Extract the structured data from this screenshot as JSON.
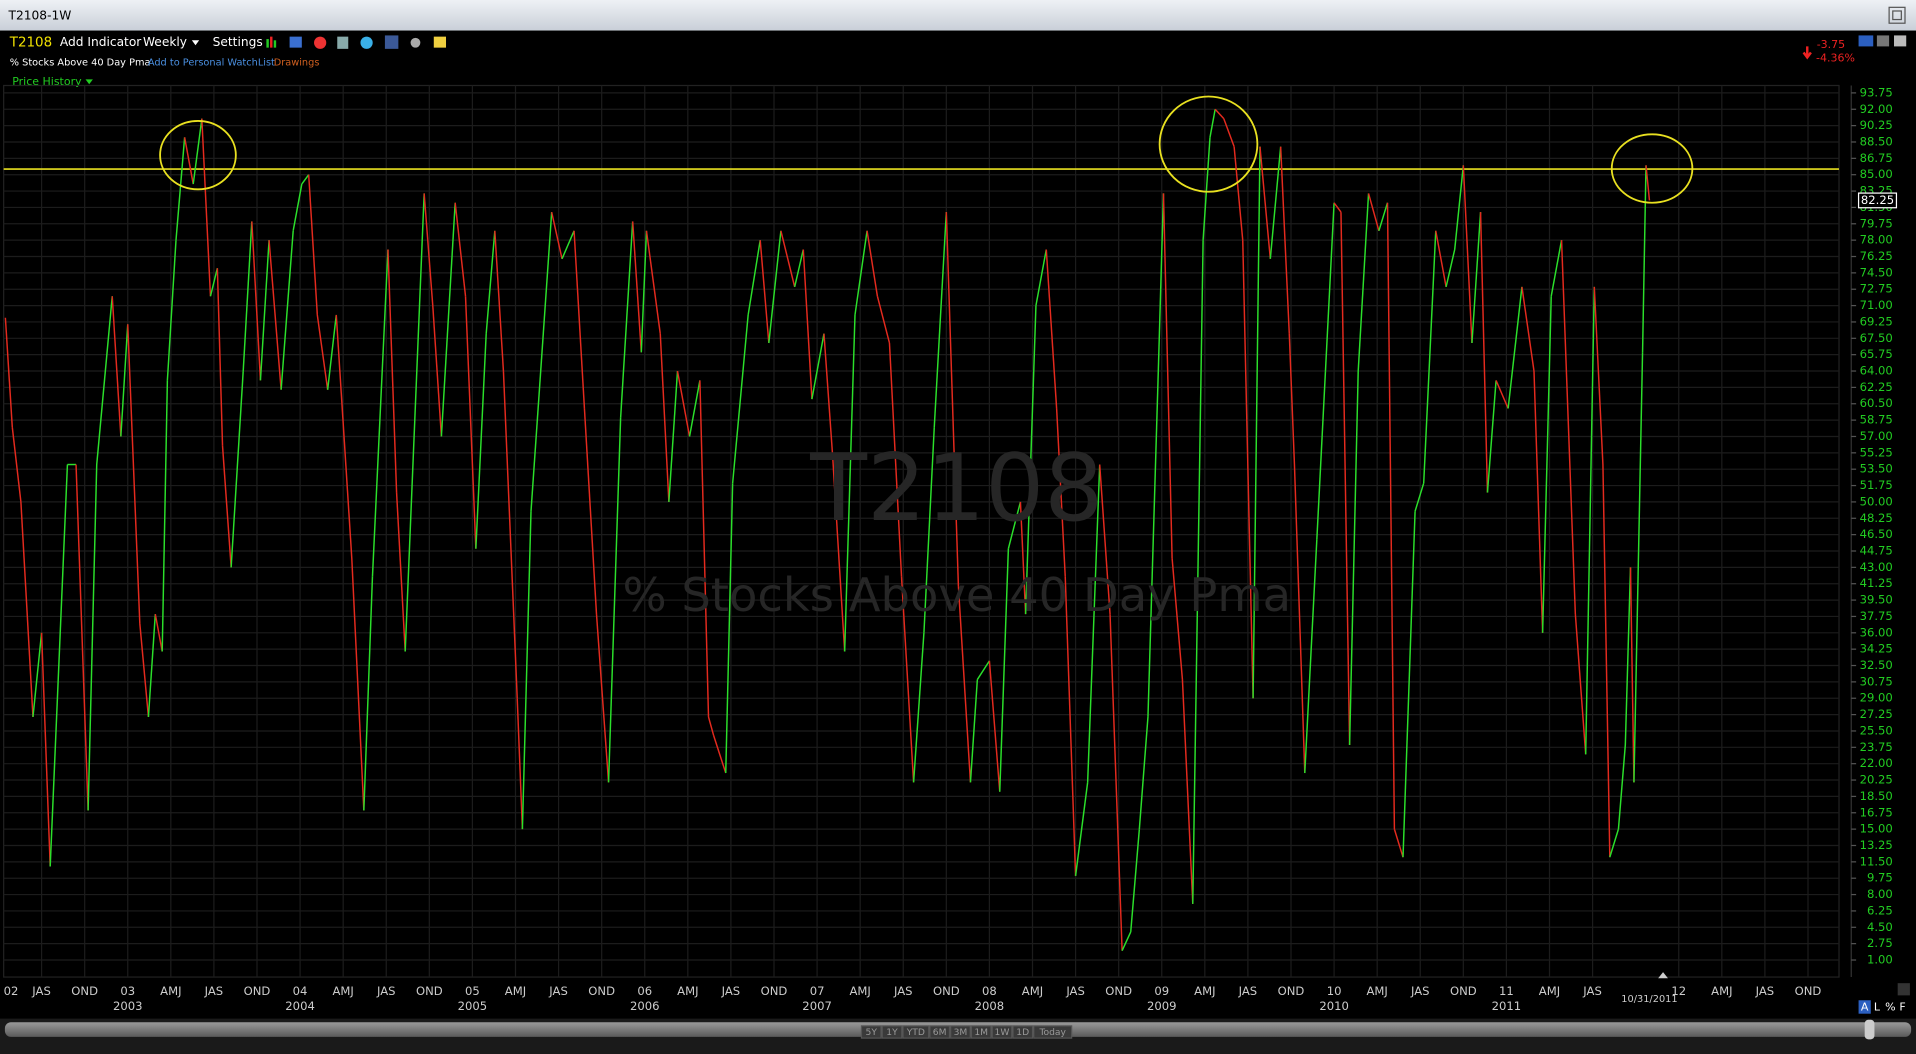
{
  "window": {
    "title": "T2108-1W"
  },
  "toolbar": {
    "symbol": "T2108",
    "add_indicator": "Add Indicator",
    "period": "Weekly",
    "settings": "Settings",
    "description": "% Stocks Above 40 Day Pma",
    "watchlist": "Add to Personal WatchList",
    "drawings": "Drawings",
    "panel": "Price History"
  },
  "quote": {
    "change": "-3.75",
    "change_pct": "-4.36%"
  },
  "range_buttons": [
    "5Y",
    "1Y",
    "YTD",
    "6M",
    "3M",
    "1M",
    "1W",
    "1D",
    "Today"
  ],
  "axis_modes": [
    "A",
    "L",
    "%",
    "F"
  ],
  "chart_data": {
    "type": "line",
    "watermark": {
      "symbol": "T2108",
      "description": "% Stocks Above 40 Day Pma"
    },
    "x": [
      2002.29,
      2002.33,
      2002.38,
      2002.45,
      2002.5,
      2002.55,
      2002.65,
      2002.7,
      2002.77,
      2002.82,
      2002.91,
      2002.96,
      2003.0,
      2003.07,
      2003.12,
      2003.16,
      2003.2,
      2003.23,
      2003.28,
      2003.33,
      2003.38,
      2003.43,
      2003.48,
      2003.52,
      2003.55,
      2003.6,
      2003.67,
      2003.72,
      2003.77,
      2003.82,
      2003.89,
      2003.96,
      2004.01,
      2004.05,
      2004.1,
      2004.16,
      2004.21,
      2004.3,
      2004.37,
      2004.42,
      2004.51,
      2004.56,
      2004.61,
      2004.72,
      2004.77,
      2004.82,
      2004.9,
      2004.96,
      2005.02,
      2005.08,
      2005.13,
      2005.18,
      2005.26,
      2005.29,
      2005.34,
      2005.46,
      2005.52,
      2005.59,
      2005.65,
      2005.72,
      2005.79,
      2005.86,
      2005.93,
      2005.98,
      2006.01,
      2006.09,
      2006.14,
      2006.19,
      2006.26,
      2006.32,
      2006.37,
      2006.4,
      2006.47,
      2006.51,
      2006.6,
      2006.67,
      2006.72,
      2006.79,
      2006.87,
      2006.92,
      2006.97,
      2007.04,
      2007.09,
      2007.16,
      2007.22,
      2007.29,
      2007.35,
      2007.42,
      2007.49,
      2007.56,
      2007.62,
      2007.68,
      2007.75,
      2007.82,
      2007.89,
      2007.93,
      2008.0,
      2008.06,
      2008.11,
      2008.18,
      2008.21,
      2008.27,
      2008.33,
      2008.39,
      2008.44,
      2008.5,
      2008.57,
      2008.64,
      2008.7,
      2008.77,
      2008.82,
      2008.87,
      2008.92,
      2008.98,
      2009.01,
      2009.06,
      2009.12,
      2009.18,
      2009.24,
      2009.28,
      2009.31,
      2009.36,
      2009.42,
      2009.47,
      2009.53,
      2009.57,
      2009.63,
      2009.69,
      2009.74,
      2009.77,
      2009.83,
      2009.9,
      2009.95,
      2010.0,
      2010.04,
      2010.09,
      2010.14,
      2010.2,
      2010.26,
      2010.31,
      2010.35,
      2010.4,
      2010.47,
      2010.52,
      2010.59,
      2010.65,
      2010.7,
      2010.75,
      2010.8,
      2010.85,
      2010.89,
      2010.94,
      2011.01,
      2011.09,
      2011.16,
      2011.21,
      2011.26,
      2011.32,
      2011.4,
      2011.46,
      2011.51,
      2011.56,
      2011.6,
      2011.65,
      2011.69,
      2011.72,
      2011.74,
      2011.79,
      2011.81,
      2011.83
    ],
    "series": [
      {
        "up_color": "#2be02b",
        "down_color": "#e42a1e",
        "values": [
          69.7,
          58,
          50,
          27,
          36,
          11,
          54,
          54,
          17,
          54,
          72,
          57,
          69,
          37,
          27,
          38,
          34,
          63,
          78,
          89,
          84,
          91,
          72,
          75,
          56,
          43,
          64,
          80,
          63,
          78,
          62,
          79,
          84,
          85,
          70,
          62,
          70,
          44,
          17,
          42,
          77,
          51,
          34,
          83,
          71,
          57,
          82,
          72,
          45,
          68,
          79,
          64,
          29,
          15,
          49,
          81,
          76,
          79,
          60,
          38,
          20,
          59,
          80,
          66,
          79,
          68,
          50,
          64,
          57,
          63,
          27,
          25,
          21,
          52,
          70,
          78,
          67,
          79,
          73,
          77,
          61,
          68,
          55,
          34,
          70,
          79,
          72,
          67,
          42,
          20,
          36,
          58,
          81,
          41,
          20,
          31,
          33,
          19,
          45,
          50,
          38,
          71,
          77,
          60,
          42,
          10,
          20,
          54,
          38,
          2,
          4,
          15,
          27,
          64,
          83,
          44,
          31,
          7,
          78,
          89,
          92,
          91,
          88,
          78,
          29,
          88,
          76,
          88,
          68,
          54,
          21,
          46,
          64,
          82,
          81,
          24,
          64,
          83,
          79,
          82,
          15,
          12,
          49,
          52,
          79,
          73,
          77,
          86,
          67,
          81,
          51,
          63,
          60,
          73,
          64,
          36,
          72,
          78,
          38,
          23,
          73,
          54,
          12,
          15,
          24,
          43,
          20,
          66,
          86,
          82.25
        ]
      }
    ],
    "xlim": [
      2002.28,
      2012.93
    ],
    "ylim": [
      0,
      95
    ],
    "xticks": [
      {
        "value": 2002,
        "label": "02"
      },
      {
        "value": 2002.5,
        "label": "JAS"
      },
      {
        "value": 2002.75,
        "label": "OND"
      },
      {
        "value": 2003,
        "label": "03"
      },
      {
        "value": 2003.25,
        "label": "AMJ"
      },
      {
        "value": 2003.5,
        "label": "JAS"
      },
      {
        "value": 2003.75,
        "label": "OND"
      },
      {
        "value": 2004,
        "label": "04"
      },
      {
        "value": 2004.25,
        "label": "AMJ"
      },
      {
        "value": 2004.5,
        "label": "JAS"
      },
      {
        "value": 2004.75,
        "label": "OND"
      },
      {
        "value": 2005,
        "label": "05"
      },
      {
        "value": 2005.25,
        "label": "AMJ"
      },
      {
        "value": 2005.5,
        "label": "JAS"
      },
      {
        "value": 2005.75,
        "label": "OND"
      },
      {
        "value": 2006,
        "label": "06"
      },
      {
        "value": 2006.25,
        "label": "AMJ"
      },
      {
        "value": 2006.5,
        "label": "JAS"
      },
      {
        "value": 2006.75,
        "label": "OND"
      },
      {
        "value": 2007,
        "label": "07"
      },
      {
        "value": 2007.25,
        "label": "AMJ"
      },
      {
        "value": 2007.5,
        "label": "JAS"
      },
      {
        "value": 2007.75,
        "label": "OND"
      },
      {
        "value": 2008,
        "label": "08"
      },
      {
        "value": 2008.25,
        "label": "AMJ"
      },
      {
        "value": 2008.5,
        "label": "JAS"
      },
      {
        "value": 2008.75,
        "label": "OND"
      },
      {
        "value": 2009,
        "label": "09"
      },
      {
        "value": 2009.25,
        "label": "AMJ"
      },
      {
        "value": 2009.5,
        "label": "JAS"
      },
      {
        "value": 2009.75,
        "label": "OND"
      },
      {
        "value": 2010,
        "label": "10"
      },
      {
        "value": 2010.25,
        "label": "AMJ"
      },
      {
        "value": 2010.5,
        "label": "JAS"
      },
      {
        "value": 2010.75,
        "label": "OND"
      },
      {
        "value": 2011,
        "label": "11"
      },
      {
        "value": 2011.25,
        "label": "AMJ"
      },
      {
        "value": 2011.5,
        "label": "JAS"
      },
      {
        "value": 2012,
        "label": "12"
      },
      {
        "value": 2012.25,
        "label": "AMJ"
      },
      {
        "value": 2012.5,
        "label": "JAS"
      },
      {
        "value": 2012.75,
        "label": "OND"
      }
    ],
    "year_labels": [
      2003,
      2004,
      2005,
      2006,
      2007,
      2008,
      2009,
      2010,
      2011
    ],
    "cursor_label": {
      "value": 2011.83,
      "label": "10/31/2011"
    },
    "yticks": [
      {
        "value": 1,
        "label": "1.00"
      },
      {
        "value": 2.75,
        "label": "2.75"
      },
      {
        "value": 4.5,
        "label": "4.50"
      },
      {
        "value": 6.25,
        "label": "6.25"
      },
      {
        "value": 8,
        "label": "8.00"
      },
      {
        "value": 9.75,
        "label": "9.75"
      },
      {
        "value": 11.5,
        "label": "11.50"
      },
      {
        "value": 13.25,
        "label": "13.25"
      },
      {
        "value": 15,
        "label": "15.00"
      },
      {
        "value": 16.75,
        "label": "16.75"
      },
      {
        "value": 18.5,
        "label": "18.50"
      },
      {
        "value": 20.25,
        "label": "20.25"
      },
      {
        "value": 22,
        "label": "22.00"
      },
      {
        "value": 23.75,
        "label": "23.75"
      },
      {
        "value": 25.5,
        "label": "25.50"
      },
      {
        "value": 27.25,
        "label": "27.25"
      },
      {
        "value": 29,
        "label": "29.00"
      },
      {
        "value": 30.75,
        "label": "30.75"
      },
      {
        "value": 32.5,
        "label": "32.50"
      },
      {
        "value": 34.25,
        "label": "34.25"
      },
      {
        "value": 36,
        "label": "36.00"
      },
      {
        "value": 37.75,
        "label": "37.75"
      },
      {
        "value": 39.5,
        "label": "39.50"
      },
      {
        "value": 41.25,
        "label": "41.25"
      },
      {
        "value": 43,
        "label": "43.00"
      },
      {
        "value": 44.75,
        "label": "44.75"
      },
      {
        "value": 46.5,
        "label": "46.50"
      },
      {
        "value": 48.25,
        "label": "48.25"
      },
      {
        "value": 50,
        "label": "50.00"
      },
      {
        "value": 51.75,
        "label": "51.75"
      },
      {
        "value": 53.5,
        "label": "53.50"
      },
      {
        "value": 55.25,
        "label": "55.25"
      },
      {
        "value": 57,
        "label": "57.00"
      },
      {
        "value": 58.75,
        "label": "58.75"
      },
      {
        "value": 60.5,
        "label": "60.50"
      },
      {
        "value": 62.25,
        "label": "62.25"
      },
      {
        "value": 64,
        "label": "64.00"
      },
      {
        "value": 65.75,
        "label": "65.75"
      },
      {
        "value": 67.5,
        "label": "67.50"
      },
      {
        "value": 69.25,
        "label": "69.25"
      },
      {
        "value": 71,
        "label": "71.00"
      },
      {
        "value": 72.75,
        "label": "72.75"
      },
      {
        "value": 74.5,
        "label": "74.50"
      },
      {
        "value": 76.25,
        "label": "76.25"
      },
      {
        "value": 78,
        "label": "78.00"
      },
      {
        "value": 79.75,
        "label": "79.75"
      },
      {
        "value": 81.5,
        "label": "81.50"
      },
      {
        "value": 83.25,
        "label": "83.25"
      },
      {
        "value": 85,
        "label": "85.00"
      },
      {
        "value": 86.75,
        "label": "86.75"
      },
      {
        "value": 88.5,
        "label": "88.50"
      },
      {
        "value": 90.25,
        "label": "90.25"
      },
      {
        "value": 92,
        "label": "92.00"
      },
      {
        "value": 93.75,
        "label": "93.75"
      }
    ],
    "grid": true,
    "hline": {
      "value": 85.6,
      "color": "#e8e020"
    }
  }
}
